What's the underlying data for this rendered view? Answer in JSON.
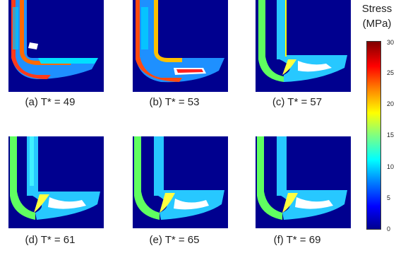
{
  "panels": [
    {
      "caption": "(a) T* = 49"
    },
    {
      "caption": "(b) T* = 53"
    },
    {
      "caption": "(c) T* = 57"
    },
    {
      "caption": "(d) T* = 61"
    },
    {
      "caption": "(e) T* = 65"
    },
    {
      "caption": "(f) T* = 69"
    }
  ],
  "colorbar": {
    "title_line1": "Stress",
    "title_line2": "(MPa)",
    "ticks": [
      "30",
      "25",
      "20",
      "15",
      "10",
      "5",
      "0"
    ],
    "colors": [
      "#00008f",
      "#0000ff",
      "#0080ff",
      "#00ffff",
      "#80ff80",
      "#ffff00",
      "#ff8000",
      "#ff0000",
      "#800000"
    ]
  }
}
